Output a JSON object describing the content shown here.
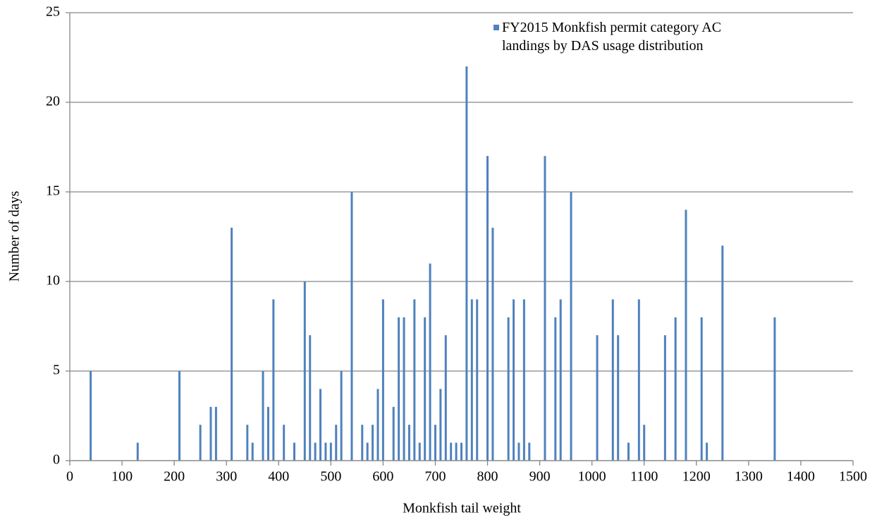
{
  "chart_data": {
    "type": "bar",
    "x_label": "Monkfish tail weight",
    "y_label": "Number of days",
    "series": [
      {
        "name": "FY2015 Monkfish permit category AC landings by DAS usage distribution",
        "color": "#4f81bd",
        "x": [
          40,
          130,
          210,
          250,
          270,
          280,
          310,
          340,
          350,
          370,
          380,
          390,
          410,
          430,
          450,
          460,
          470,
          480,
          490,
          500,
          510,
          520,
          540,
          560,
          570,
          580,
          590,
          600,
          620,
          630,
          640,
          650,
          660,
          670,
          680,
          690,
          700,
          710,
          720,
          730,
          740,
          750,
          760,
          770,
          780,
          800,
          810,
          840,
          850,
          860,
          870,
          880,
          910,
          930,
          940,
          960,
          1010,
          1040,
          1050,
          1070,
          1090,
          1100,
          1140,
          1160,
          1180,
          1210,
          1220,
          1250,
          1350
        ],
        "values": [
          5,
          1,
          5,
          2,
          3,
          3,
          13,
          2,
          1,
          5,
          3,
          9,
          2,
          1,
          10,
          7,
          1,
          4,
          1,
          1,
          2,
          5,
          15,
          2,
          1,
          2,
          4,
          9,
          3,
          8,
          8,
          2,
          9,
          1,
          8,
          11,
          2,
          4,
          7,
          1,
          1,
          1,
          22,
          9,
          9,
          17,
          13,
          8,
          9,
          1,
          9,
          1,
          17,
          8,
          9,
          15,
          7,
          9,
          7,
          1,
          9,
          2,
          7,
          8,
          14,
          8,
          1,
          12,
          8
        ]
      }
    ],
    "xlim": [
      0,
      1500
    ],
    "xticks": [
      0,
      100,
      200,
      300,
      400,
      500,
      600,
      700,
      800,
      900,
      1000,
      1100,
      1200,
      1300,
      1400,
      1500
    ],
    "ylim": [
      0,
      25
    ],
    "yticks": [
      0,
      5,
      10,
      15,
      20,
      25
    ],
    "grid": true,
    "legend": "upper right"
  }
}
